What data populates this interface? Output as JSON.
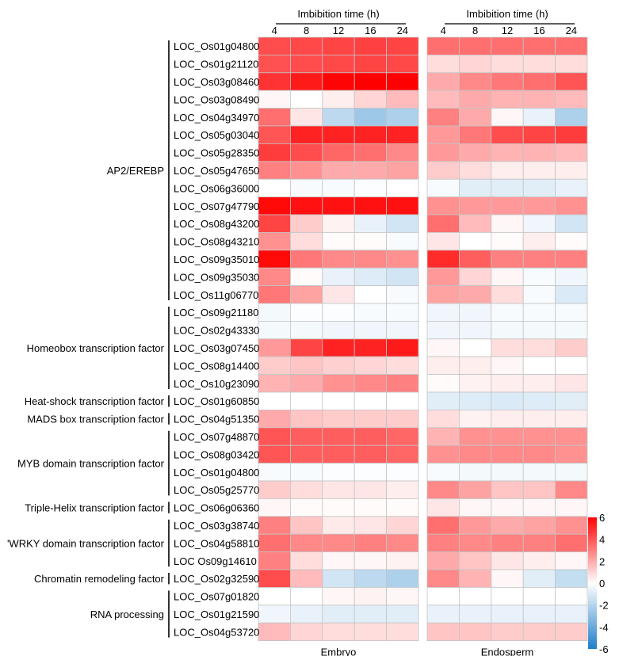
{
  "chart_data": {
    "type": "heatmap",
    "header_label": "Imbibition time (h)",
    "time_points": [
      "4",
      "8",
      "12",
      "16",
      "24"
    ],
    "panels": [
      {
        "name": "Embryo",
        "values": [
          [
            4.2,
            4.3,
            4.4,
            4.5,
            4.4
          ],
          [
            4.1,
            4.2,
            4.3,
            4.4,
            4.3
          ],
          [
            4.8,
            5.4,
            5.9,
            6.0,
            6.0
          ],
          [
            0.2,
            0.0,
            0.4,
            1.0,
            1.6
          ],
          [
            3.4,
            0.6,
            -1.8,
            -2.6,
            -2.2
          ],
          [
            4.0,
            5.2,
            5.2,
            5.2,
            5.2
          ],
          [
            4.6,
            4.2,
            3.6,
            3.4,
            2.8
          ],
          [
            3.0,
            2.6,
            2.0,
            2.0,
            2.2
          ],
          [
            0.0,
            -0.2,
            -0.2,
            -0.1,
            0.0
          ],
          [
            5.8,
            5.6,
            5.6,
            5.6,
            5.6
          ],
          [
            4.4,
            1.2,
            0.3,
            -0.6,
            -1.2
          ],
          [
            2.6,
            0.8,
            0.1,
            0.1,
            -0.2
          ],
          [
            5.8,
            3.2,
            2.8,
            2.8,
            2.6
          ],
          [
            2.8,
            0.1,
            -0.6,
            -0.9,
            -1.2
          ],
          [
            3.2,
            2.2,
            0.6,
            0.0,
            -0.2
          ],
          [
            -0.3,
            -0.1,
            -0.1,
            -0.2,
            -0.2
          ],
          [
            -0.3,
            -0.3,
            -0.4,
            -0.4,
            -0.4
          ],
          [
            2.4,
            4.4,
            5.2,
            5.2,
            5.4
          ],
          [
            1.2,
            1.4,
            1.1,
            1.0,
            0.8
          ],
          [
            1.8,
            2.0,
            2.6,
            2.8,
            3.0
          ],
          [
            0.0,
            0.0,
            0.0,
            0.0,
            0.0
          ],
          [
            2.0,
            1.4,
            1.2,
            1.2,
            1.2
          ],
          [
            4.0,
            3.8,
            3.8,
            3.8,
            3.6
          ],
          [
            4.0,
            3.8,
            3.8,
            3.8,
            3.6
          ],
          [
            -0.2,
            -0.2,
            -0.1,
            -0.1,
            -0.1
          ],
          [
            1.2,
            0.8,
            0.6,
            0.6,
            0.4
          ],
          [
            0.2,
            0.1,
            0.1,
            0.1,
            0.1
          ],
          [
            3.0,
            1.4,
            0.5,
            0.6,
            1.0
          ],
          [
            3.4,
            2.8,
            2.8,
            3.0,
            2.8
          ],
          [
            3.0,
            0.8,
            0.2,
            0.2,
            0.3
          ],
          [
            4.2,
            1.6,
            -1.2,
            -1.8,
            -2.2
          ],
          [
            0.0,
            0.0,
            0.2,
            0.3,
            0.2
          ],
          [
            -0.4,
            -0.6,
            -0.8,
            -0.8,
            -0.8
          ],
          [
            1.6,
            1.0,
            0.8,
            0.8,
            0.8
          ]
        ]
      },
      {
        "name": "Endosperm",
        "values": [
          [
            3.4,
            3.4,
            3.4,
            3.4,
            3.4
          ],
          [
            0.8,
            1.0,
            0.8,
            0.8,
            0.8
          ],
          [
            2.0,
            2.8,
            3.2,
            3.4,
            4.0
          ],
          [
            1.6,
            2.0,
            1.8,
            1.8,
            1.6
          ],
          [
            3.0,
            2.0,
            0.2,
            -0.6,
            -2.2
          ],
          [
            2.4,
            3.2,
            4.2,
            4.4,
            4.6
          ],
          [
            2.4,
            2.0,
            1.8,
            1.8,
            1.6
          ],
          [
            1.2,
            0.8,
            0.4,
            0.4,
            0.4
          ],
          [
            -0.2,
            -0.8,
            -0.8,
            -0.8,
            -0.6
          ],
          [
            2.6,
            2.4,
            2.4,
            2.4,
            2.6
          ],
          [
            3.4,
            1.6,
            0.2,
            -0.4,
            -1.2
          ],
          [
            0.6,
            0.0,
            0.1,
            0.4,
            0.1
          ],
          [
            5.0,
            3.8,
            3.0,
            3.0,
            3.0
          ],
          [
            2.4,
            1.0,
            0.2,
            -0.2,
            -0.4
          ],
          [
            2.2,
            2.0,
            0.8,
            -0.2,
            -1.0
          ],
          [
            -0.4,
            -0.4,
            -0.2,
            -0.2,
            -0.2
          ],
          [
            -0.4,
            -0.4,
            -0.3,
            -0.3,
            -0.3
          ],
          [
            0.2,
            0.0,
            0.8,
            0.8,
            1.2
          ],
          [
            0.4,
            0.4,
            0.2,
            0.0,
            0.0
          ],
          [
            0.1,
            0.3,
            0.4,
            0.4,
            0.6
          ],
          [
            -0.8,
            -0.9,
            -1.0,
            -0.9,
            -0.8
          ],
          [
            0.8,
            0.3,
            0.4,
            0.4,
            0.4
          ],
          [
            1.8,
            2.6,
            2.6,
            2.6,
            2.6
          ],
          [
            2.6,
            2.8,
            2.8,
            2.8,
            2.6
          ],
          [
            -0.2,
            -0.3,
            -0.3,
            -0.3,
            -0.3
          ],
          [
            2.8,
            2.2,
            1.4,
            1.4,
            2.8
          ],
          [
            0.6,
            0.2,
            0.2,
            0.2,
            0.2
          ],
          [
            3.4,
            2.4,
            2.0,
            2.2,
            2.6
          ],
          [
            3.0,
            2.8,
            3.0,
            3.0,
            3.4
          ],
          [
            2.0,
            1.4,
            0.6,
            0.4,
            0.2
          ],
          [
            2.8,
            1.8,
            0.2,
            -0.8,
            -1.6
          ],
          [
            0.0,
            0.0,
            0.0,
            0.0,
            0.0
          ],
          [
            -0.6,
            -0.6,
            -0.6,
            -0.6,
            -0.6
          ],
          [
            1.4,
            1.4,
            1.2,
            1.2,
            1.2
          ]
        ]
      }
    ],
    "genes": [
      "LOC_Os01g04800",
      "LOC_Os01g21120",
      "LOC_Os03g08460",
      "LOC_Os03g08490",
      "LOC_Os04g34970",
      "LOC_Os05g03040",
      "LOC_Os05g28350",
      "LOC_Os05g47650",
      "LOC_Os06g36000",
      "LOC_Os07g47790",
      "LOC_Os08g43200",
      "LOC_Os08g43210",
      "LOC_Os09g35010",
      "LOC_Os09g35030",
      "LOC_Os11g06770",
      "LOC_Os09g21180",
      "LOC_Os02g43330",
      "LOC_Os03g07450",
      "LOC_Os08g14400",
      "LOC_Os10g23090",
      "LOC_Os01g60850",
      "LOC_Os04g51350",
      "LOC_Os07g48870",
      "LOC_Os08g03420",
      "LOC_Os01g04800",
      "LOC_Os05g25770",
      "LOC_Os06g06360",
      "LOC_Os03g38740",
      "LOC_Os04g58810",
      "LOC  Os09g14610",
      "LOC_Os02g32590",
      "LOC_Os07g01820",
      "LOC_Os01g21590",
      "LOC_Os04g53720"
    ],
    "groups": [
      {
        "label": "AP2/EREBP",
        "start": 0,
        "end": 14
      },
      {
        "label": "Homeobox transcription factor",
        "start": 15,
        "end": 19
      },
      {
        "label": "Heat-shock transcription factor",
        "start": 20,
        "end": 20
      },
      {
        "label": "MADS box transcription factor",
        "start": 21,
        "end": 21
      },
      {
        "label": "MYB domain transcription factor",
        "start": 22,
        "end": 25
      },
      {
        "label": "Triple-Helix transcription factor",
        "start": 26,
        "end": 26
      },
      {
        "label": "'WRKY domain transcription factor",
        "start": 27,
        "end": 29
      },
      {
        "label": "Chromatin remodeling factor",
        "start": 30,
        "end": 30
      },
      {
        "label": "RNA processing",
        "start": 31,
        "end": 33
      }
    ],
    "colorbar": {
      "range": [
        -6,
        6
      ],
      "ticks": [
        "6",
        "4",
        "2",
        "0",
        "-2",
        "-4",
        "-6"
      ],
      "colors": {
        "high": "#ff0000",
        "mid": "#ffffff",
        "low": "#1f7fc9"
      }
    }
  }
}
